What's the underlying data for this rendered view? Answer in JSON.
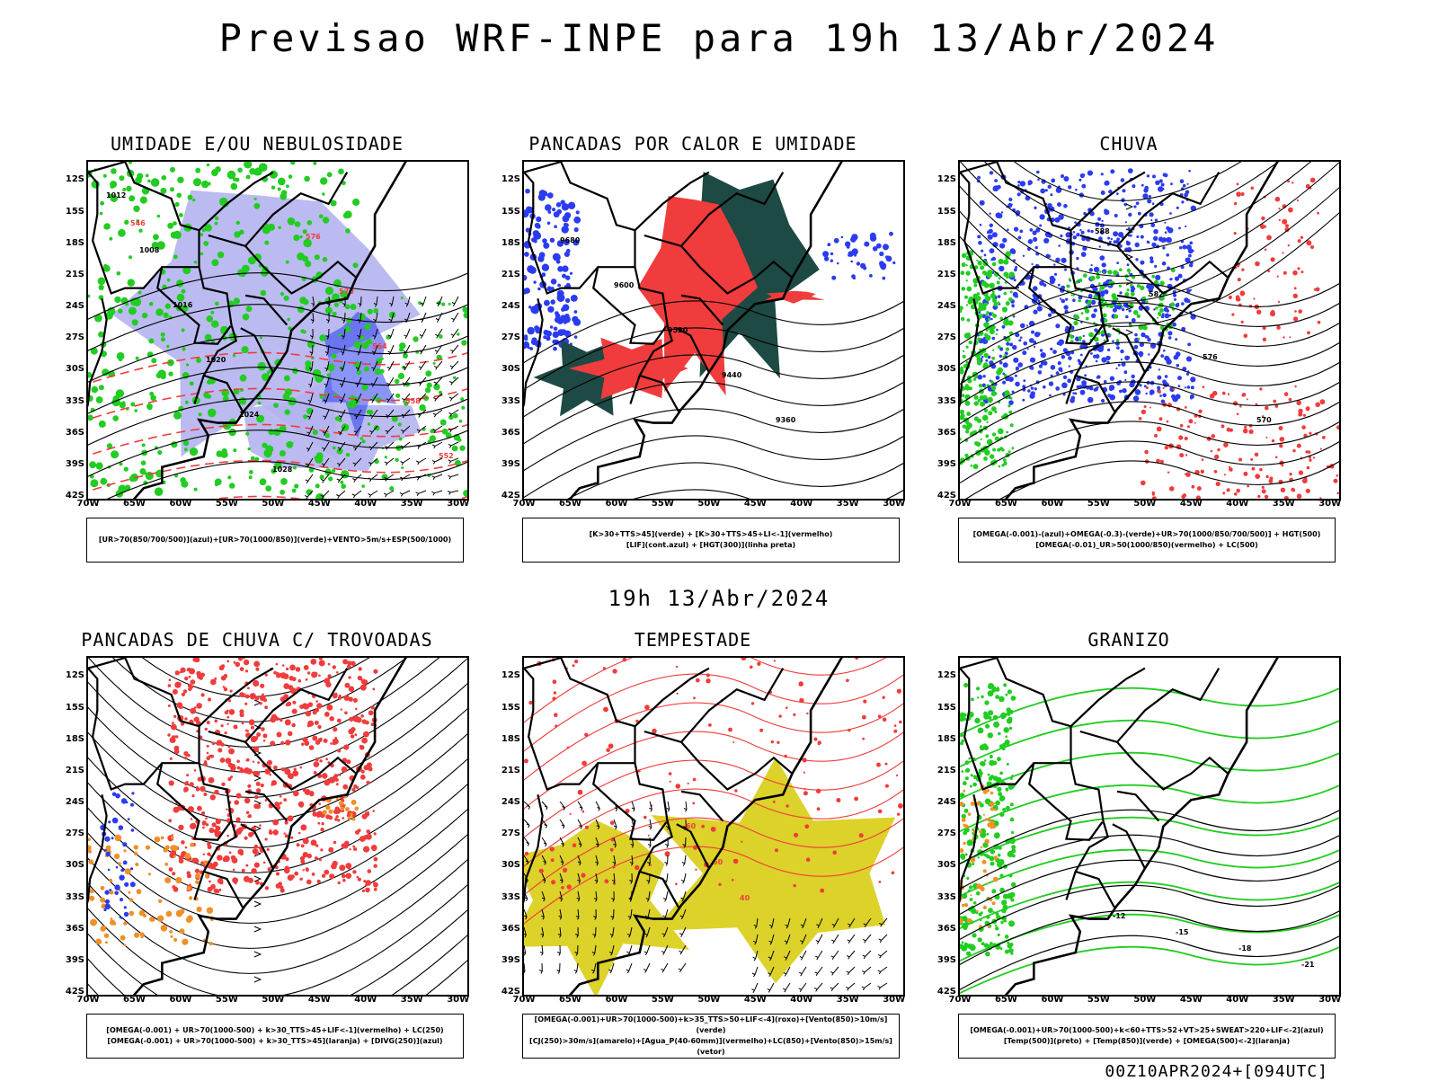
{
  "page": {
    "title": "Previsao WRF-INPE  para 19h 13/Abr/2024",
    "mid_date": "19h 13/Abr/2024",
    "footer": "00Z10APR2024+[094UTC]"
  },
  "axes": {
    "lat_labels": [
      "12S",
      "15S",
      "18S",
      "21S",
      "24S",
      "27S",
      "30S",
      "33S",
      "36S",
      "39S",
      "42S"
    ],
    "lon_labels": [
      "70W",
      "65W",
      "60W",
      "55W",
      "50W",
      "45W",
      "40W",
      "35W",
      "30W"
    ]
  },
  "colors": {
    "blue_shade": "#b4b4f0",
    "blue": "#2b3cf0",
    "green": "#22cc22",
    "red": "#f03c3c",
    "dark_teal": "#1d4a44",
    "orange": "#f09028",
    "yellow": "#dcd22a",
    "black": "#000000"
  },
  "panels": [
    {
      "title": "UMIDADE E/OU NEBULOSIDADE",
      "legend": [
        "[UR>70(850/700/500)](azul)+[UR>70(1000/850)](verde)+VENTO>5m/s+ESP(500/1000)"
      ],
      "labels": [
        "1012",
        "1008",
        "1016",
        "1020",
        "1024",
        "1028",
        "576",
        "570",
        "564",
        "558",
        "552",
        "546"
      ]
    },
    {
      "title": "PANCADAS POR CALOR E UMIDADE",
      "legend": [
        "[K>30+TTS>45](verde)  +  [K>30+TTS>45+LI<-1](vermelho)",
        "[LIF](cont.azul)  +  [HGT(300)](linha preta)"
      ],
      "labels": [
        "9680",
        "9600",
        "9520",
        "9440",
        "9360"
      ]
    },
    {
      "title": "CHUVA",
      "legend": [
        "[OMEGA(-0.001)-(azul)+OMEGA(-0.3)-(verde)+UR>70(1000/850/700/500)]  +  HGT(500)",
        "[OMEGA(-0.01)_UR>50(1000/850)(vermelho)  +  LC(500)"
      ],
      "labels": [
        "588",
        "582",
        "576",
        "570"
      ]
    },
    {
      "title": "PANCADAS DE CHUVA C/ TROVOADAS",
      "legend": [
        "[OMEGA(-0.001) + UR>70(1000-500) + k>30_TTS>45+LIF<-1](vermelho) + LC(250)",
        "[OMEGA(-0.001) + UR>70(1000-500) + k>30_TTS>45](laranja) + [DIVG(250)](azul)"
      ],
      "labels": []
    },
    {
      "title": "TEMPESTADE",
      "legend": [
        "[OMEGA(-0.001)+UR>70(1000-500)+k>35_TTS>50+LIF<-4](roxo)+[Vento(850)>10m/s](verde)",
        "[CJ(250)>30m/s](amarelo)+[Agua_P(40-60mm)](vermelho)+LC(850)+[Vento(850)>15m/s](vetor)"
      ],
      "labels": [
        "60",
        "50",
        "40"
      ]
    },
    {
      "title": "GRANIZO",
      "legend": [
        "[OMEGA(-0.001)+UR>70(1000-500)+k<60+TTS>52+VT>25+SWEAT>220+LIF<-2](azul)",
        "[Temp(500)](preto)  +  [Temp(850)](verde)  +  [OMEGA(500)<-2](laranja)"
      ],
      "labels": [
        "-12",
        "-15",
        "-18",
        "-21"
      ]
    }
  ]
}
